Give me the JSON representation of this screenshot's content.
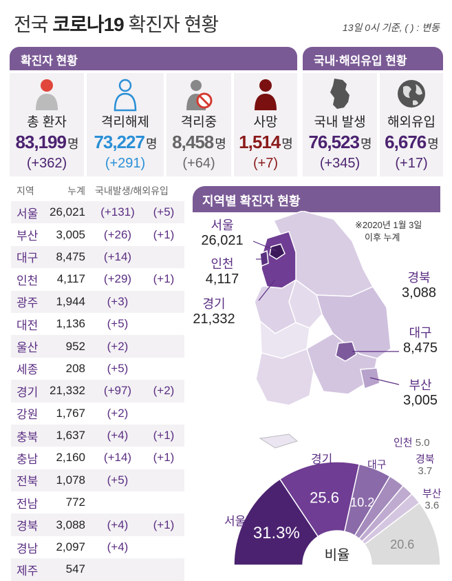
{
  "header": {
    "title_prefix": "전국",
    "title_bold": "코로나19",
    "title_suffix": "확진자 현황",
    "basis": "13일 0시 기준, ( ) : 변동"
  },
  "status_panel": {
    "title": "확진자 현황"
  },
  "import_panel": {
    "title": "국내·해외유입 현황"
  },
  "unit": "명",
  "stats": [
    {
      "label": "총 환자",
      "value": "83,199",
      "delta": "(+362)",
      "color": "#4b2270",
      "icon": "person-red-icon"
    },
    {
      "label": "격리해제",
      "value": "73,227",
      "delta": "(+291)",
      "color": "#2a8fd6",
      "icon": "person-outline-icon"
    },
    {
      "label": "격리중",
      "value": "8,458",
      "delta": "(+64)",
      "color": "#666666",
      "icon": "person-prohibited-icon"
    },
    {
      "label": "사망",
      "value": "1,514",
      "delta": "(+7)",
      "color": "#8b1a1a",
      "icon": "person-dark-red-icon"
    },
    {
      "label": "국내 발생",
      "value": "76,523",
      "delta": "(+345)",
      "color": "#4b2270",
      "icon": "korea-map-icon"
    },
    {
      "label": "해외유입",
      "value": "6,676",
      "delta": "(+17)",
      "color": "#4b2270",
      "icon": "globe-icon"
    }
  ],
  "table": {
    "headers": [
      "지역",
      "누계",
      "국내발생/해외유입"
    ],
    "rows": [
      {
        "region": "서울",
        "total": "26,021",
        "domestic": "(+131)",
        "abroad": "(+5)"
      },
      {
        "region": "부산",
        "total": "3,005",
        "domestic": "(+26)",
        "abroad": "(+1)"
      },
      {
        "region": "대구",
        "total": "8,475",
        "domestic": "(+14)",
        "abroad": ""
      },
      {
        "region": "인천",
        "total": "4,117",
        "domestic": "(+29)",
        "abroad": "(+1)"
      },
      {
        "region": "광주",
        "total": "1,944",
        "domestic": "(+3)",
        "abroad": ""
      },
      {
        "region": "대전",
        "total": "1,136",
        "domestic": "(+5)",
        "abroad": ""
      },
      {
        "region": "울산",
        "total": "952",
        "domestic": "(+2)",
        "abroad": ""
      },
      {
        "region": "세종",
        "total": "208",
        "domestic": "(+5)",
        "abroad": ""
      },
      {
        "region": "경기",
        "total": "21,332",
        "domestic": "(+97)",
        "abroad": "(+2)"
      },
      {
        "region": "강원",
        "total": "1,767",
        "domestic": "(+2)",
        "abroad": ""
      },
      {
        "region": "충북",
        "total": "1,637",
        "domestic": "(+4)",
        "abroad": "(+1)"
      },
      {
        "region": "충남",
        "total": "2,160",
        "domestic": "(+14)",
        "abroad": "(+1)"
      },
      {
        "region": "전북",
        "total": "1,078",
        "domestic": "(+5)",
        "abroad": ""
      },
      {
        "region": "전남",
        "total": "772",
        "domestic": "",
        "abroad": ""
      },
      {
        "region": "경북",
        "total": "3,088",
        "domestic": "(+4)",
        "abroad": "(+1)"
      },
      {
        "region": "경남",
        "total": "2,097",
        "domestic": "(+4)",
        "abroad": ""
      },
      {
        "region": "제주",
        "total": "547",
        "domestic": "",
        "abroad": ""
      }
    ]
  },
  "map": {
    "title": "지역별 확진자 현황",
    "note_line1": "※2020년 1월 3일",
    "note_line2": "이후 누계",
    "labels": [
      {
        "region": "서울",
        "value": "26,021"
      },
      {
        "region": "인천",
        "value": "4,117"
      },
      {
        "region": "경기",
        "value": "21,332"
      },
      {
        "region": "경북",
        "value": "3,088"
      },
      {
        "region": "대구",
        "value": "8,475"
      },
      {
        "region": "부산",
        "value": "3,005"
      }
    ],
    "colors": {
      "seoul": "#4b2270",
      "gyeonggi": "#6f3d93",
      "daegu": "#7d5a9c",
      "mid": "#b9a4cc",
      "light": "#d9cde4",
      "pale": "#ebe4f1"
    }
  },
  "chart_data": {
    "type": "pie",
    "title": "비율",
    "slices": [
      {
        "label": "서울",
        "value": 31.3,
        "display": "31.3",
        "color": "#4b2270"
      },
      {
        "label": "경기",
        "value": 25.6,
        "display": "25.6",
        "color": "#6f3d93"
      },
      {
        "label": "대구",
        "value": 10.2,
        "display": "10.2",
        "color": "#8a6aa8"
      },
      {
        "label": "인천",
        "value": 5.0,
        "display": "5.0",
        "color": "#a58cbd"
      },
      {
        "label": "경북",
        "value": 3.7,
        "display": "3.7",
        "color": "#bfaad0"
      },
      {
        "label": "부산",
        "value": 3.6,
        "display": "3.6",
        "color": "#d4c6e0"
      },
      {
        "label": "",
        "value": 20.6,
        "display": "20.6",
        "color": "#dcdcdc"
      }
    ],
    "percent_sign": "%"
  }
}
